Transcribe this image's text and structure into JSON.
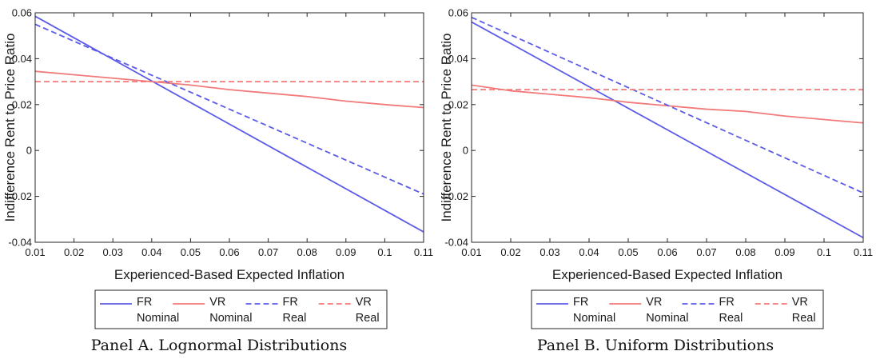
{
  "chart_data": [
    {
      "type": "line",
      "caption": "Panel A. Lognormal Distributions",
      "xlabel": "Experienced-Based Expected Inflation",
      "ylabel": "Indifference Rent to Price Ratio",
      "xlim": [
        0.01,
        0.11
      ],
      "ylim": [
        -0.04,
        0.06
      ],
      "xticks": [
        "0.01",
        "0.02",
        "0.03",
        "0.04",
        "0.05",
        "0.06",
        "0.07",
        "0.08",
        "0.09",
        "0.1",
        "0.11"
      ],
      "yticks": [
        "-0.04",
        "-0.02",
        "0",
        "0.02",
        "0.04",
        "0.06"
      ],
      "grid": false,
      "legend_position": "bottom",
      "series": [
        {
          "name": "FR Nominal",
          "name_lines": [
            "FR",
            "Nominal"
          ],
          "color": "#5b5be8",
          "dash": "solid",
          "x": [
            0.01,
            0.11
          ],
          "y": [
            0.0585,
            -0.0355
          ]
        },
        {
          "name": "VR Nominal",
          "name_lines": [
            "VR",
            "Nominal"
          ],
          "color": "#f27a7a",
          "dash": "solid",
          "x": [
            0.01,
            0.02,
            0.03,
            0.04,
            0.05,
            0.06,
            0.07,
            0.08,
            0.09,
            0.1,
            0.11
          ],
          "y": [
            0.0345,
            0.033,
            0.0315,
            0.03,
            0.0285,
            0.0265,
            0.025,
            0.0235,
            0.0215,
            0.02,
            0.0187
          ]
        },
        {
          "name": "FR Real",
          "name_lines": [
            "FR",
            "Real"
          ],
          "color": "#5b5be8",
          "dash": "dashed",
          "x": [
            0.01,
            0.11
          ],
          "y": [
            0.055,
            -0.019
          ]
        },
        {
          "name": "VR Real",
          "name_lines": [
            "VR",
            "Real"
          ],
          "color": "#f27a7a",
          "dash": "dashed",
          "x": [
            0.01,
            0.11
          ],
          "y": [
            0.03,
            0.03
          ]
        }
      ]
    },
    {
      "type": "line",
      "caption": "Panel B. Uniform Distributions",
      "xlabel": "Experienced-Based Expected Inflation",
      "ylabel": "Indifference Rent to Price Ratio",
      "xlim": [
        0.01,
        0.11
      ],
      "ylim": [
        -0.04,
        0.06
      ],
      "xticks": [
        "0.01",
        "0.02",
        "0.03",
        "0.04",
        "0.05",
        "0.06",
        "0.07",
        "0.08",
        "0.09",
        "0.1",
        "0.11"
      ],
      "yticks": [
        "-0.04",
        "-0.02",
        "0",
        "0.02",
        "0.04",
        "0.06"
      ],
      "grid": false,
      "legend_position": "bottom",
      "series": [
        {
          "name": "FR Nominal",
          "name_lines": [
            "FR",
            "Nominal"
          ],
          "color": "#5b5be8",
          "dash": "solid",
          "x": [
            0.01,
            0.11
          ],
          "y": [
            0.056,
            -0.038
          ]
        },
        {
          "name": "VR Nominal",
          "name_lines": [
            "VR",
            "Nominal"
          ],
          "color": "#f27a7a",
          "dash": "solid",
          "x": [
            0.01,
            0.02,
            0.03,
            0.04,
            0.05,
            0.06,
            0.07,
            0.08,
            0.09,
            0.1,
            0.11
          ],
          "y": [
            0.0285,
            0.026,
            0.0245,
            0.023,
            0.021,
            0.0195,
            0.018,
            0.017,
            0.015,
            0.0135,
            0.012
          ]
        },
        {
          "name": "FR Real",
          "name_lines": [
            "FR",
            "Real"
          ],
          "color": "#5b5be8",
          "dash": "dashed",
          "x": [
            0.01,
            0.11
          ],
          "y": [
            0.058,
            -0.0185
          ]
        },
        {
          "name": "VR Real",
          "name_lines": [
            "VR",
            "Real"
          ],
          "color": "#f27a7a",
          "dash": "dashed",
          "x": [
            0.01,
            0.11
          ],
          "y": [
            0.0265,
            0.0265
          ]
        }
      ]
    }
  ]
}
